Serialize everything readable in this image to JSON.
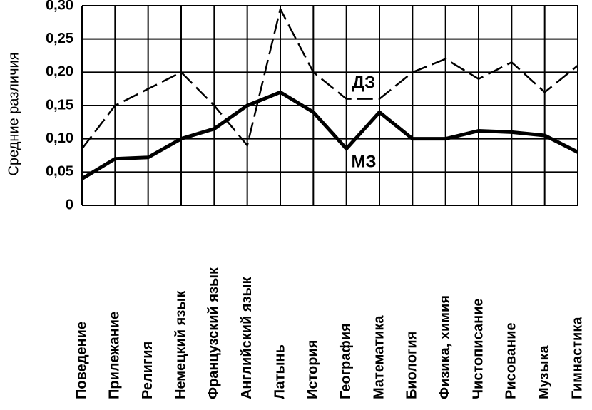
{
  "chart_data": {
    "type": "line",
    "y_label": "Средние различия",
    "categories": [
      "Поведение",
      "Прилежание",
      "Религия",
      "Немецкий язык",
      "Французский язык",
      "Английский язык",
      "Латынь",
      "История",
      "География",
      "Математика",
      "Биология",
      "Физика, химия",
      "Чистописание",
      "Рисование",
      "Музыка",
      "Гимнастика"
    ],
    "series": [
      {
        "name": "ДЗ",
        "color": "#000000",
        "linestyle": "dashed",
        "values": [
          0.085,
          0.15,
          0.175,
          0.2,
          0.15,
          0.09,
          0.295,
          0.2,
          0.16,
          0.16,
          0.2,
          0.22,
          0.19,
          0.215,
          0.17,
          0.21
        ]
      },
      {
        "name": "МЗ",
        "color": "#000000",
        "linestyle": "solid",
        "values": [
          0.04,
          0.07,
          0.072,
          0.1,
          0.115,
          0.15,
          0.17,
          0.14,
          0.085,
          0.14,
          0.1,
          0.1,
          0.112,
          0.11,
          0.105,
          0.08
        ]
      }
    ],
    "ylim": [
      0,
      0.3
    ],
    "yticks": [
      0,
      {
        "value": 0.05,
        "label": "0,05"
      },
      {
        "value": 0.1,
        "label": "0,10"
      },
      {
        "value": 0.15,
        "label": "0,15"
      },
      {
        "value": 0.2,
        "label": "0,20"
      },
      {
        "value": 0.25,
        "label": "0,25"
      },
      {
        "value": 0.3,
        "label": "0,30"
      }
    ],
    "grid": true
  }
}
